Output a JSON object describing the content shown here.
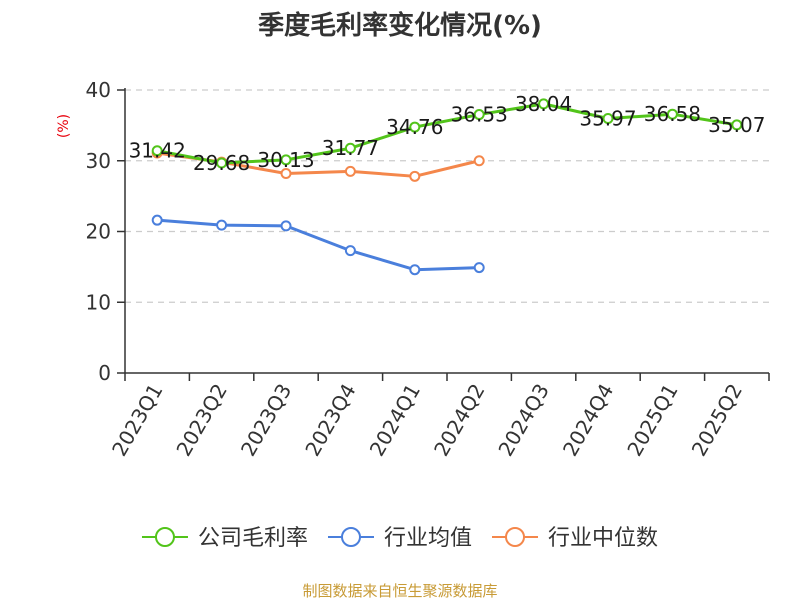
{
  "chart_data": {
    "type": "line",
    "title": "季度毛利率变化情况(%)",
    "ylabel": "(%)",
    "ylim": [
      0,
      40
    ],
    "yticks": [
      0,
      10,
      20,
      30,
      40
    ],
    "grid": true,
    "legend_position": "bottom",
    "categories": [
      "2023Q1",
      "2023Q2",
      "2023Q3",
      "2023Q4",
      "2024Q1",
      "2024Q2",
      "2024Q3",
      "2024Q4",
      "2025Q1",
      "2025Q2"
    ],
    "series": [
      {
        "name": "公司毛利率",
        "color": "#52c41a",
        "values": [
          31.42,
          29.68,
          30.13,
          31.77,
          34.76,
          36.53,
          38.04,
          35.97,
          36.58,
          35.07
        ],
        "labels": [
          "31.42",
          "29.68",
          "30.13",
          "31.77",
          "34.76",
          "36.53",
          "38.04",
          "35.97",
          "36.58",
          "35.07"
        ],
        "show_labels": true
      },
      {
        "name": "行业均值",
        "color": "#4a7fdc",
        "values": [
          21.6,
          20.9,
          20.8,
          17.3,
          14.6,
          14.9,
          null,
          null,
          null,
          null
        ],
        "show_labels": false
      },
      {
        "name": "行业中位数",
        "color": "#f4874b",
        "values": [
          31.1,
          29.8,
          28.2,
          28.5,
          27.8,
          30.0,
          null,
          null,
          null,
          null
        ],
        "show_labels": false
      }
    ]
  },
  "colors": {
    "axis": "#333333",
    "grid": "#cccccc",
    "unit": "#e8000b",
    "source": "#c89b36"
  },
  "source_text": "制图数据来自恒生聚源数据库"
}
